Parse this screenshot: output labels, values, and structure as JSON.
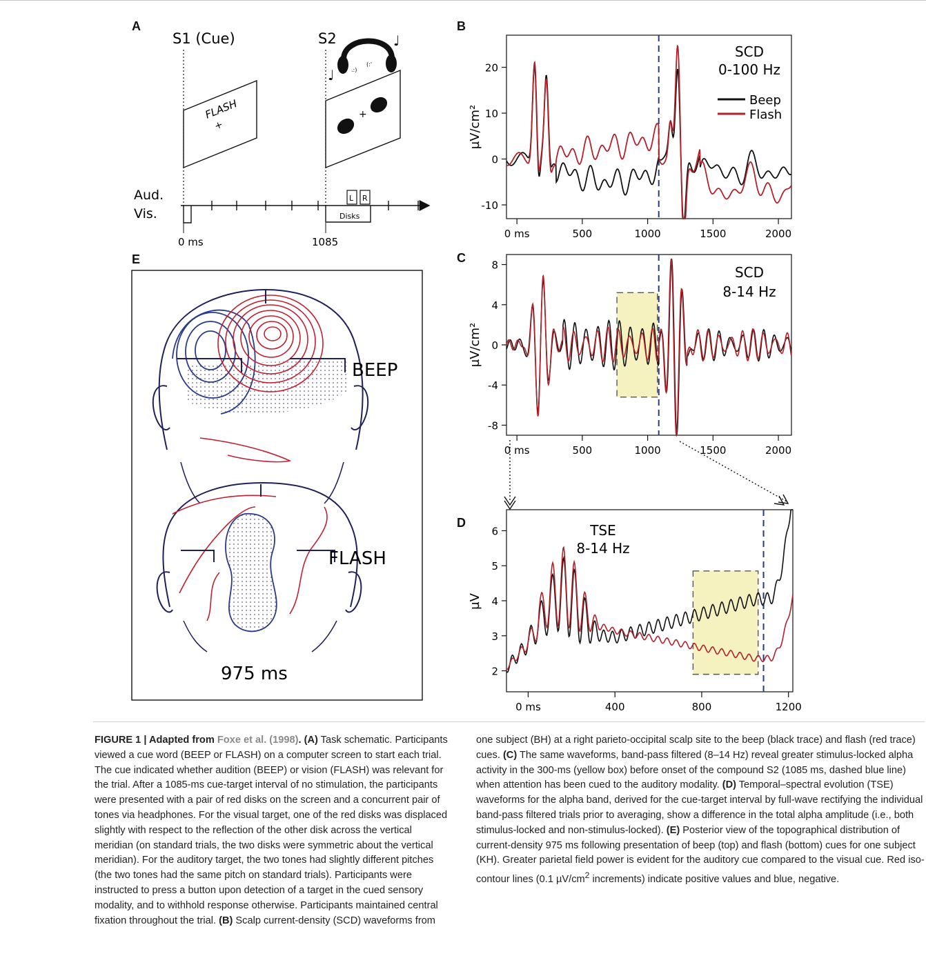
{
  "panels": {
    "A": "A",
    "B": "B",
    "C": "C",
    "D": "D",
    "E": "E"
  },
  "schematic": {
    "s1_label": "S1 (Cue)",
    "s2_label": "S2",
    "flash_word": "FLASH",
    "plus": "+",
    "aud_label": "Aud.",
    "vis_label": "Vis.",
    "disks_label": "Disks",
    "left_tone": "L",
    "right_tone": "R",
    "t0": "0 ms",
    "t1085": "1085"
  },
  "chart_data": [
    {
      "id": "B",
      "type": "line",
      "title": "SCD",
      "subtitle": "0-100 Hz",
      "ylabel": "µV/cm²",
      "xlim": [
        -80,
        2100
      ],
      "ylim": [
        -13,
        27
      ],
      "yticks": [
        -10,
        0,
        10,
        20
      ],
      "xticks": [
        {
          "v": 0,
          "label": "0 ms"
        },
        {
          "v": 500,
          "label": "500"
        },
        {
          "v": 1000,
          "label": "1000"
        },
        {
          "v": 1500,
          "label": "1500"
        },
        {
          "v": 2000,
          "label": "2000"
        }
      ],
      "cue_line": 1085,
      "series": [
        {
          "name": "Beep",
          "color": "#111111"
        },
        {
          "name": "Flash",
          "color": "#b3202a"
        }
      ]
    },
    {
      "id": "C",
      "type": "line",
      "title": "SCD",
      "subtitle": "8-14 Hz",
      "ylabel": "µV/cm²",
      "xlim": [
        -80,
        2100
      ],
      "ylim": [
        -9,
        9
      ],
      "yticks": [
        -8,
        -4,
        0,
        4,
        8
      ],
      "xticks": [
        {
          "v": 0,
          "label": "0 ms"
        },
        {
          "v": 500,
          "label": "500"
        },
        {
          "v": 1000,
          "label": "1000"
        },
        {
          "v": 1500,
          "label": "1500"
        },
        {
          "v": 2000,
          "label": "2000"
        }
      ],
      "cue_line": 1085,
      "highlight": [
        765,
        1075,
        -5.2,
        5.2
      ],
      "series": [
        {
          "color": "#111111"
        },
        {
          "color": "#b3202a"
        }
      ]
    },
    {
      "id": "D",
      "type": "line",
      "title": "TSE",
      "subtitle": "8-14 Hz",
      "ylabel": "µV",
      "xlim": [
        -100,
        1220
      ],
      "ylim": [
        1.4,
        6.6
      ],
      "yticks": [
        2,
        3,
        4,
        5,
        6
      ],
      "xticks": [
        {
          "v": 0,
          "label": "0 ms"
        },
        {
          "v": 400,
          "label": "400"
        },
        {
          "v": 800,
          "label": "800"
        },
        {
          "v": 1200,
          "label": "1200"
        }
      ],
      "cue_line": 1085,
      "highlight": [
        760,
        1060,
        1.9,
        4.85
      ],
      "series": [
        {
          "color": "#111111"
        },
        {
          "color": "#b3202a"
        }
      ]
    }
  ],
  "topography": {
    "beep_label": "BEEP",
    "flash_label": "FLASH",
    "time_label": "975 ms"
  },
  "caption": {
    "figure_label": "FIGURE 1 | Adapted from ",
    "citation": "Foxe et al. (1998)",
    "p1": ". ",
    "A": "(A)",
    "a_text": " Task schematic. Participants viewed a cue word (BEEP or FLASH) on a computer screen to start each trial. The cue indicated whether audition (BEEP) or vision (FLASH) was relevant for the trial. After a 1085-ms cue-target interval of no stimulation, the participants were presented with a pair of red disks on the screen and a concurrent pair of tones via headphones. For the visual target, one of the red disks was displaced slightly with respect to the reflection of the other disk across the vertical meridian (on standard trials, the two disks were symmetric about the vertical meridian). For the auditory target, the two tones had slightly different pitches (the two tones had the same pitch on standard trials). Participants were instructed to press a button upon detection of a target in the cued sensory modality, and to withhold response otherwise. Participants maintained central fixation throughout the trial. ",
    "B": "(B)",
    "b_text1": " Scalp current-density (SCD) waveforms from",
    "b_text2": "one subject (BH) at a right parieto-occipital scalp site to the beep (black trace) and flash (red trace) cues. ",
    "C": "(C)",
    "c_text": " The same waveforms, band-pass filtered (8–14 Hz) reveal greater stimulus-locked alpha activity in the 300-ms (yellow box) before onset of the compound S2 (1085 ms, dashed blue line) when attention has been cued to the auditory modality. ",
    "D": "(D)",
    "d_text": " Temporal–spectral evolution (TSE) waveforms for the alpha band, derived for the cue-target interval by full-wave rectifying the individual band-pass filtered trials prior to averaging, show a difference in the total alpha amplitude (i.e., both stimulus-locked and non-stimulus-locked). ",
    "E": "(E)",
    "e_text1": " Posterior view of the topographical distribution of current-density 975 ms following presentation of beep (top) and flash (bottom) cues for one subject (KH). Greater parietal field power is evident for the auditory cue compared to the visual cue. Red iso-contour lines (0.1 µV/cm",
    "e_sup": "2",
    "e_text2": " increments) indicate positive values and blue, negative."
  }
}
